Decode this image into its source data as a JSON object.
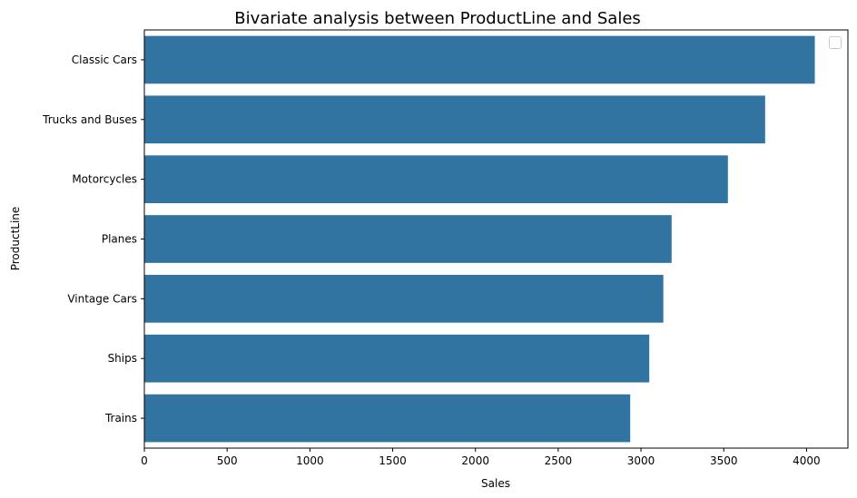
{
  "chart_data": {
    "type": "bar",
    "orientation": "horizontal",
    "title": "Bivariate analysis between ProductLine and Sales",
    "xlabel": "Sales",
    "ylabel": "ProductLine",
    "categories": [
      "Classic Cars",
      "Trucks and Buses",
      "Motorcycles",
      "Planes",
      "Vintage Cars",
      "Ships",
      "Trains"
    ],
    "values": [
      4050,
      3750,
      3525,
      3185,
      3135,
      3050,
      2935
    ],
    "xlim": [
      0,
      4250
    ],
    "xticks": [
      "0",
      "500",
      "1000",
      "1500",
      "2000",
      "2500",
      "3000",
      "3500",
      "4000"
    ],
    "grid": false,
    "legend": {
      "placement": "top-right",
      "entries": []
    },
    "colors": {
      "bar": "#3274a1"
    }
  }
}
